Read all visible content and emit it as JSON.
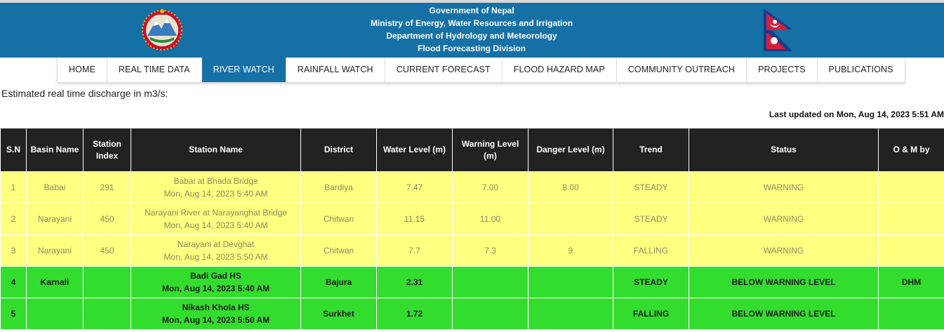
{
  "header": {
    "lines": [
      "Government of Nepal",
      "Ministry of Energy, Water Resources and Irrigation",
      "Department of Hydrology and Meteorology",
      "Flood Forecasting Division"
    ],
    "brand_color": "#1570a6",
    "left_logo": "nepal-emblem-icon",
    "right_logo": "nepal-flag-icon"
  },
  "nav": [
    {
      "label": "HOME",
      "active": false
    },
    {
      "label": "REAL TIME DATA",
      "active": false
    },
    {
      "label": "RIVER WATCH",
      "active": true
    },
    {
      "label": "RAINFALL WATCH",
      "active": false
    },
    {
      "label": "CURRENT FORECAST",
      "active": false
    },
    {
      "label": "FLOOD HAZARD MAP",
      "active": false
    },
    {
      "label": "COMMUNITY OUTREACH",
      "active": false
    },
    {
      "label": "PROJECTS",
      "active": false
    },
    {
      "label": "PUBLICATIONS",
      "active": false
    }
  ],
  "subtitle": "Estimated real time discharge in m3/s:",
  "last_updated": "Last updated on Mon, Aug 14, 2023 5:51 AM",
  "table": {
    "columns": [
      "S.N",
      "Basin Name",
      "Station Index",
      "Station Name",
      "District",
      "Water Level (m)",
      "Warning Level (m)",
      "Danger Level (m)",
      "Trend",
      "Status",
      "O & M by"
    ],
    "rows": [
      {
        "status_class": "warning",
        "sn": "1",
        "basin": "Babai",
        "index": "291",
        "station": "Babai at Bhada Bridge",
        "time": "Mon, Aug 14, 2023 5:40 AM",
        "district": "Bardiya",
        "water": "7.47",
        "warning": "7.00",
        "danger": "8.00",
        "trend": "STEADY",
        "status": "WARNING",
        "om": ""
      },
      {
        "status_class": "warning",
        "sn": "2",
        "basin": "Narayani",
        "index": "450",
        "station": "Narayani River at Narayanghat Bridge",
        "time": "Mon, Aug 14, 2023 5:40 AM",
        "district": "Chitwan",
        "water": "11.15",
        "warning": "11.00",
        "danger": "",
        "trend": "STEADY",
        "status": "WARNING",
        "om": ""
      },
      {
        "status_class": "warning",
        "sn": "3",
        "basin": "Narayani",
        "index": "450",
        "station": "Narayani at Devghat",
        "time": "Mon, Aug 14, 2023 5:50 AM",
        "district": "Chitwan",
        "water": "7.7",
        "warning": "7.3",
        "danger": "9",
        "trend": "FALLING",
        "status": "WARNING",
        "om": ""
      },
      {
        "status_class": "ok",
        "sn": "4",
        "basin": "Karnali",
        "index": "",
        "station": "Badi Gad HS",
        "time": "Mon, Aug 14, 2023 5:40 AM",
        "district": "Bajura",
        "water": "2.31",
        "warning": "",
        "danger": "",
        "trend": "STEADY",
        "status": "BELOW WARNING LEVEL",
        "om": "DHM"
      },
      {
        "status_class": "ok",
        "sn": "5",
        "basin": "",
        "index": "",
        "station": "Nikash Khola HS",
        "time": "Mon, Aug 14, 2023 5:50 AM",
        "district": "Surkhet",
        "water": "1.72",
        "warning": "",
        "danger": "",
        "trend": "FALLING",
        "status": "BELOW WARNING LEVEL",
        "om": ""
      }
    ],
    "colors": {
      "warning": "#ffff80",
      "ok": "#33dd2e",
      "header": "#222222"
    }
  }
}
